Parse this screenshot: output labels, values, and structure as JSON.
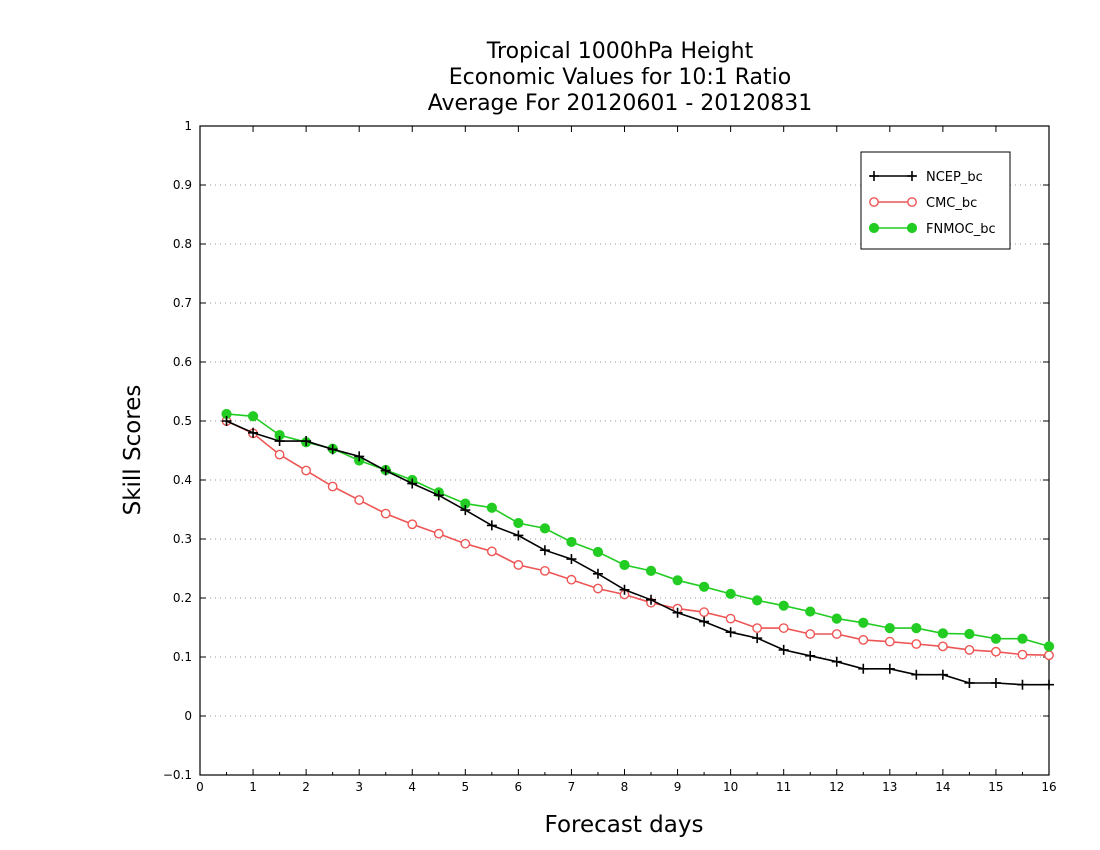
{
  "chart_data": {
    "type": "line",
    "title": [
      "Tropical 1000hPa Height",
      "Economic Values for 10:1 Ratio",
      "Average For 20120601 - 20120831"
    ],
    "xlabel": "Forecast days",
    "ylabel": "Skill Scores",
    "xlim": [
      0,
      16
    ],
    "ylim": [
      -0.1,
      1
    ],
    "xticks": [
      "0",
      "1",
      "2",
      "3",
      "4",
      "5",
      "6",
      "7",
      "8",
      "9",
      "10",
      "11",
      "12",
      "13",
      "14",
      "15",
      "16"
    ],
    "yticks": [
      "−0.1",
      "0",
      "0.1",
      "0.2",
      "0.3",
      "0.4",
      "0.5",
      "0.6",
      "0.7",
      "0.8",
      "0.9",
      "1"
    ],
    "grid": "horizontal dotted",
    "legend_position": "top-right",
    "x": [
      0.5,
      1,
      1.5,
      2,
      2.5,
      3,
      3.5,
      4,
      4.5,
      5,
      5.5,
      6,
      6.5,
      7,
      7.5,
      8,
      8.5,
      9,
      9.5,
      10,
      10.5,
      11,
      11.5,
      12,
      12.5,
      13,
      13.5,
      14,
      14.5,
      15,
      15.5,
      16
    ],
    "series": [
      {
        "name": "NCEP_bc",
        "color": "#000000",
        "marker": "plus",
        "values": [
          0.5,
          0.48,
          0.466,
          0.466,
          0.452,
          0.44,
          0.416,
          0.394,
          0.374,
          0.349,
          0.323,
          0.306,
          0.281,
          0.266,
          0.241,
          0.214,
          0.197,
          0.175,
          0.16,
          0.142,
          0.132,
          0.112,
          0.102,
          0.092,
          0.08,
          0.08,
          0.07,
          0.07,
          0.056,
          0.056,
          0.053,
          0.053
        ]
      },
      {
        "name": "CMC_bc",
        "color": "#ee5555",
        "marker": "open-circle",
        "values": [
          0.5,
          0.479,
          0.443,
          0.416,
          0.389,
          0.366,
          0.343,
          0.325,
          0.309,
          0.292,
          0.279,
          0.256,
          0.246,
          0.231,
          0.216,
          0.206,
          0.192,
          0.182,
          0.176,
          0.165,
          0.149,
          0.149,
          0.139,
          0.139,
          0.129,
          0.126,
          0.122,
          0.118,
          0.112,
          0.109,
          0.104,
          0.103
        ]
      },
      {
        "name": "FNMOC_bc",
        "color": "#22cc22",
        "marker": "filled-circle",
        "values": [
          0.512,
          0.508,
          0.476,
          0.464,
          0.453,
          0.433,
          0.417,
          0.4,
          0.379,
          0.36,
          0.353,
          0.327,
          0.318,
          0.295,
          0.278,
          0.256,
          0.246,
          0.23,
          0.219,
          0.207,
          0.196,
          0.187,
          0.177,
          0.165,
          0.158,
          0.149,
          0.149,
          0.14,
          0.139,
          0.131,
          0.131,
          0.118
        ]
      }
    ]
  }
}
